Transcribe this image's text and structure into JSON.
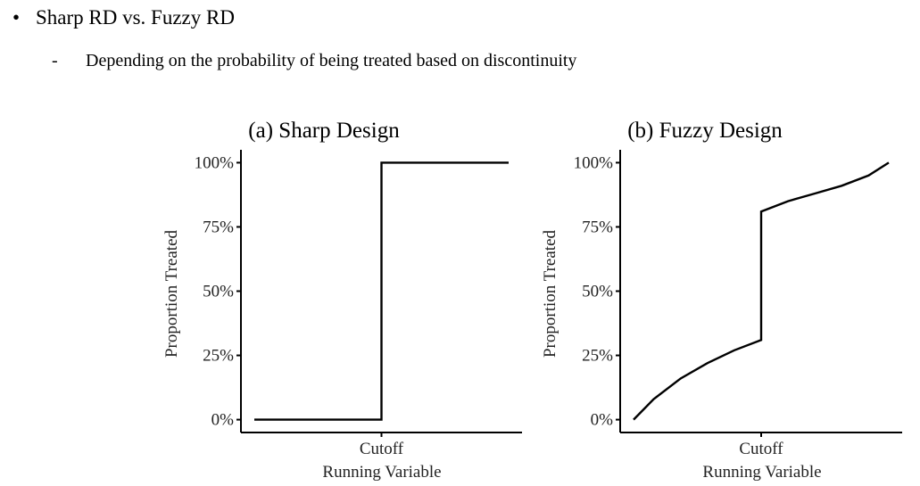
{
  "slide": {
    "bullet": "Sharp RD vs. Fuzzy RD",
    "sub_bullet_marker": "-",
    "sub_bullet": "Depending on the probability of being treated based on discontinuity"
  },
  "chart_data": [
    {
      "type": "line",
      "title": "(a) Sharp Design",
      "xlabel": "Running Variable",
      "ylabel": "Proportion Treated",
      "xticks": [
        {
          "value": 0,
          "label": "Cutoff"
        }
      ],
      "yticks": [
        {
          "value": 0,
          "label": "0%"
        },
        {
          "value": 0.25,
          "label": "25%"
        },
        {
          "value": 0.5,
          "label": "50%"
        },
        {
          "value": 0.75,
          "label": "75%"
        },
        {
          "value": 1.0,
          "label": "100%"
        }
      ],
      "xlim": [
        -1.05,
        1.05
      ],
      "ylim": [
        -0.05,
        1.05
      ],
      "grid": false,
      "series": [
        {
          "x": [
            -0.95,
            -0.6,
            -0.3,
            0,
            0,
            0.3,
            0.6,
            0.95
          ],
          "y": [
            0,
            0,
            0,
            0,
            1,
            1,
            1,
            1
          ]
        }
      ]
    },
    {
      "type": "line",
      "title": "(b) Fuzzy Design",
      "xlabel": "Running Variable",
      "ylabel": "Proportion Treated",
      "xticks": [
        {
          "value": 0,
          "label": "Cutoff"
        }
      ],
      "yticks": [
        {
          "value": 0,
          "label": "0%"
        },
        {
          "value": 0.25,
          "label": "25%"
        },
        {
          "value": 0.5,
          "label": "50%"
        },
        {
          "value": 0.75,
          "label": "75%"
        },
        {
          "value": 1.0,
          "label": "100%"
        }
      ],
      "xlim": [
        -1.05,
        1.05
      ],
      "ylim": [
        -0.05,
        1.05
      ],
      "grid": false,
      "series": [
        {
          "x": [
            -0.95,
            -0.8,
            -0.6,
            -0.4,
            -0.2,
            0,
            0,
            0.2,
            0.4,
            0.6,
            0.8,
            0.95
          ],
          "y": [
            0,
            0.08,
            0.16,
            0.22,
            0.27,
            0.31,
            0.81,
            0.85,
            0.88,
            0.91,
            0.95,
            1.0
          ]
        }
      ]
    }
  ]
}
